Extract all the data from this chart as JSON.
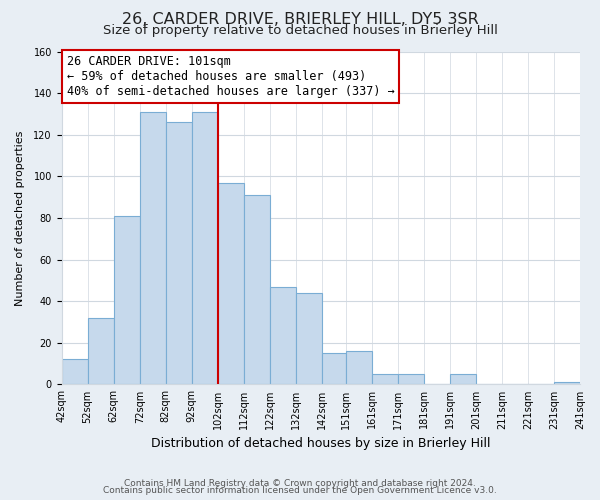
{
  "title": "26, CARDER DRIVE, BRIERLEY HILL, DY5 3SR",
  "subtitle": "Size of property relative to detached houses in Brierley Hill",
  "xlabel": "Distribution of detached houses by size in Brierley Hill",
  "ylabel": "Number of detached properties",
  "footer_line1": "Contains HM Land Registry data © Crown copyright and database right 2024.",
  "footer_line2": "Contains public sector information licensed under the Open Government Licence v3.0.",
  "annotation_line1": "26 CARDER DRIVE: 101sqm",
  "annotation_line2": "← 59% of detached houses are smaller (493)",
  "annotation_line3": "40% of semi-detached houses are larger (337) →",
  "bar_color": "#c6d9ec",
  "bar_edge_color": "#7aadd4",
  "marker_line_color": "#cc0000",
  "bins": [
    42,
    52,
    62,
    72,
    82,
    92,
    102,
    112,
    122,
    132,
    142,
    151,
    161,
    171,
    181,
    191,
    201,
    211,
    221,
    231,
    241
  ],
  "counts": [
    12,
    32,
    81,
    131,
    126,
    131,
    97,
    91,
    47,
    44,
    15,
    16,
    5,
    5,
    0,
    5,
    0,
    0,
    0,
    1
  ],
  "ylim": [
    0,
    160
  ],
  "yticks": [
    0,
    20,
    40,
    60,
    80,
    100,
    120,
    140,
    160
  ],
  "background_color": "#e8eef4",
  "plot_bg_color": "#ffffff",
  "grid_color": "#d0d8e0",
  "title_fontsize": 11.5,
  "subtitle_fontsize": 9.5,
  "xlabel_fontsize": 9,
  "ylabel_fontsize": 8,
  "tick_fontsize": 7,
  "annotation_fontsize": 8.5,
  "footer_fontsize": 6.5
}
